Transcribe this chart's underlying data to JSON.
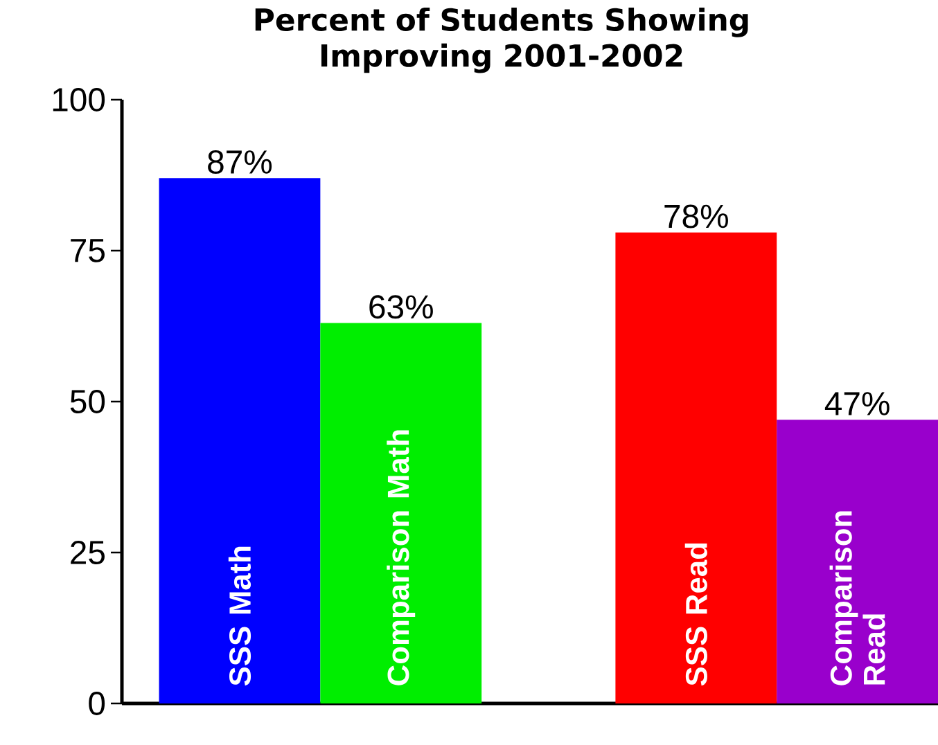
{
  "chart_data": {
    "type": "bar",
    "title": "Percent of Students Showing Improving 2001-2002",
    "categories": [
      "SSS Math",
      "Comparison Math",
      "SSS Read",
      "Comparison Read"
    ],
    "values": [
      87,
      63,
      78,
      47
    ],
    "colors": [
      "#0000ff",
      "#00ee00",
      "#ff0000",
      "#9900cc"
    ],
    "value_labels": [
      "87%",
      "63%",
      "78%",
      "47%"
    ],
    "ylim": [
      0,
      100
    ],
    "yticks": [
      0,
      25,
      50,
      75,
      100
    ]
  }
}
